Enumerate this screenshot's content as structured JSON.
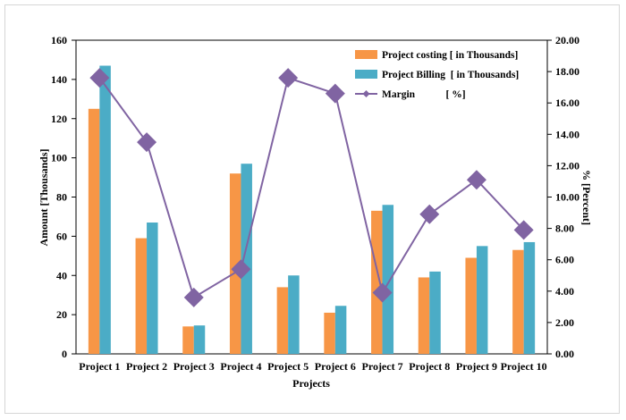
{
  "chart_data": {
    "type": "bar",
    "categories": [
      "Project 1",
      "Project 2",
      "Project 3",
      "Project 4",
      "Project 5",
      "Project 6",
      "Project 7",
      "Project 8",
      "Project 9",
      "Project 10"
    ],
    "series": [
      {
        "name": "Project costing [ in Thousands]",
        "type": "bar",
        "axis": "left",
        "color": "#F79646",
        "values": [
          125,
          59,
          14,
          92,
          34,
          21,
          73,
          39,
          49,
          53
        ]
      },
      {
        "name": "Project Billing  [ in Thousands]",
        "type": "bar",
        "axis": "left",
        "color": "#4BACC6",
        "values": [
          147,
          67,
          14.5,
          97,
          40,
          24.5,
          76,
          42,
          55,
          57
        ]
      },
      {
        "name": "Margin            [ %]",
        "type": "line",
        "axis": "right",
        "color": "#8064A2",
        "values": [
          17.6,
          13.5,
          3.6,
          5.4,
          17.6,
          16.6,
          3.9,
          8.9,
          11.1,
          7.9
        ]
      }
    ],
    "xlabel": "Projects",
    "ylabel": "Amount [Thousands]",
    "y2label": "% [Percent]",
    "ylim": [
      0,
      160
    ],
    "y2lim": [
      0,
      20
    ],
    "yticks": [
      "0",
      "20",
      "40",
      "60",
      "80",
      "100",
      "120",
      "140",
      "160"
    ],
    "y2ticks": [
      "0.00",
      "2.00",
      "4.00",
      "6.00",
      "8.00",
      "10.00",
      "12.00",
      "14.00",
      "16.00",
      "18.00",
      "20.00"
    ],
    "legend_position": "top-right",
    "grid": false
  }
}
